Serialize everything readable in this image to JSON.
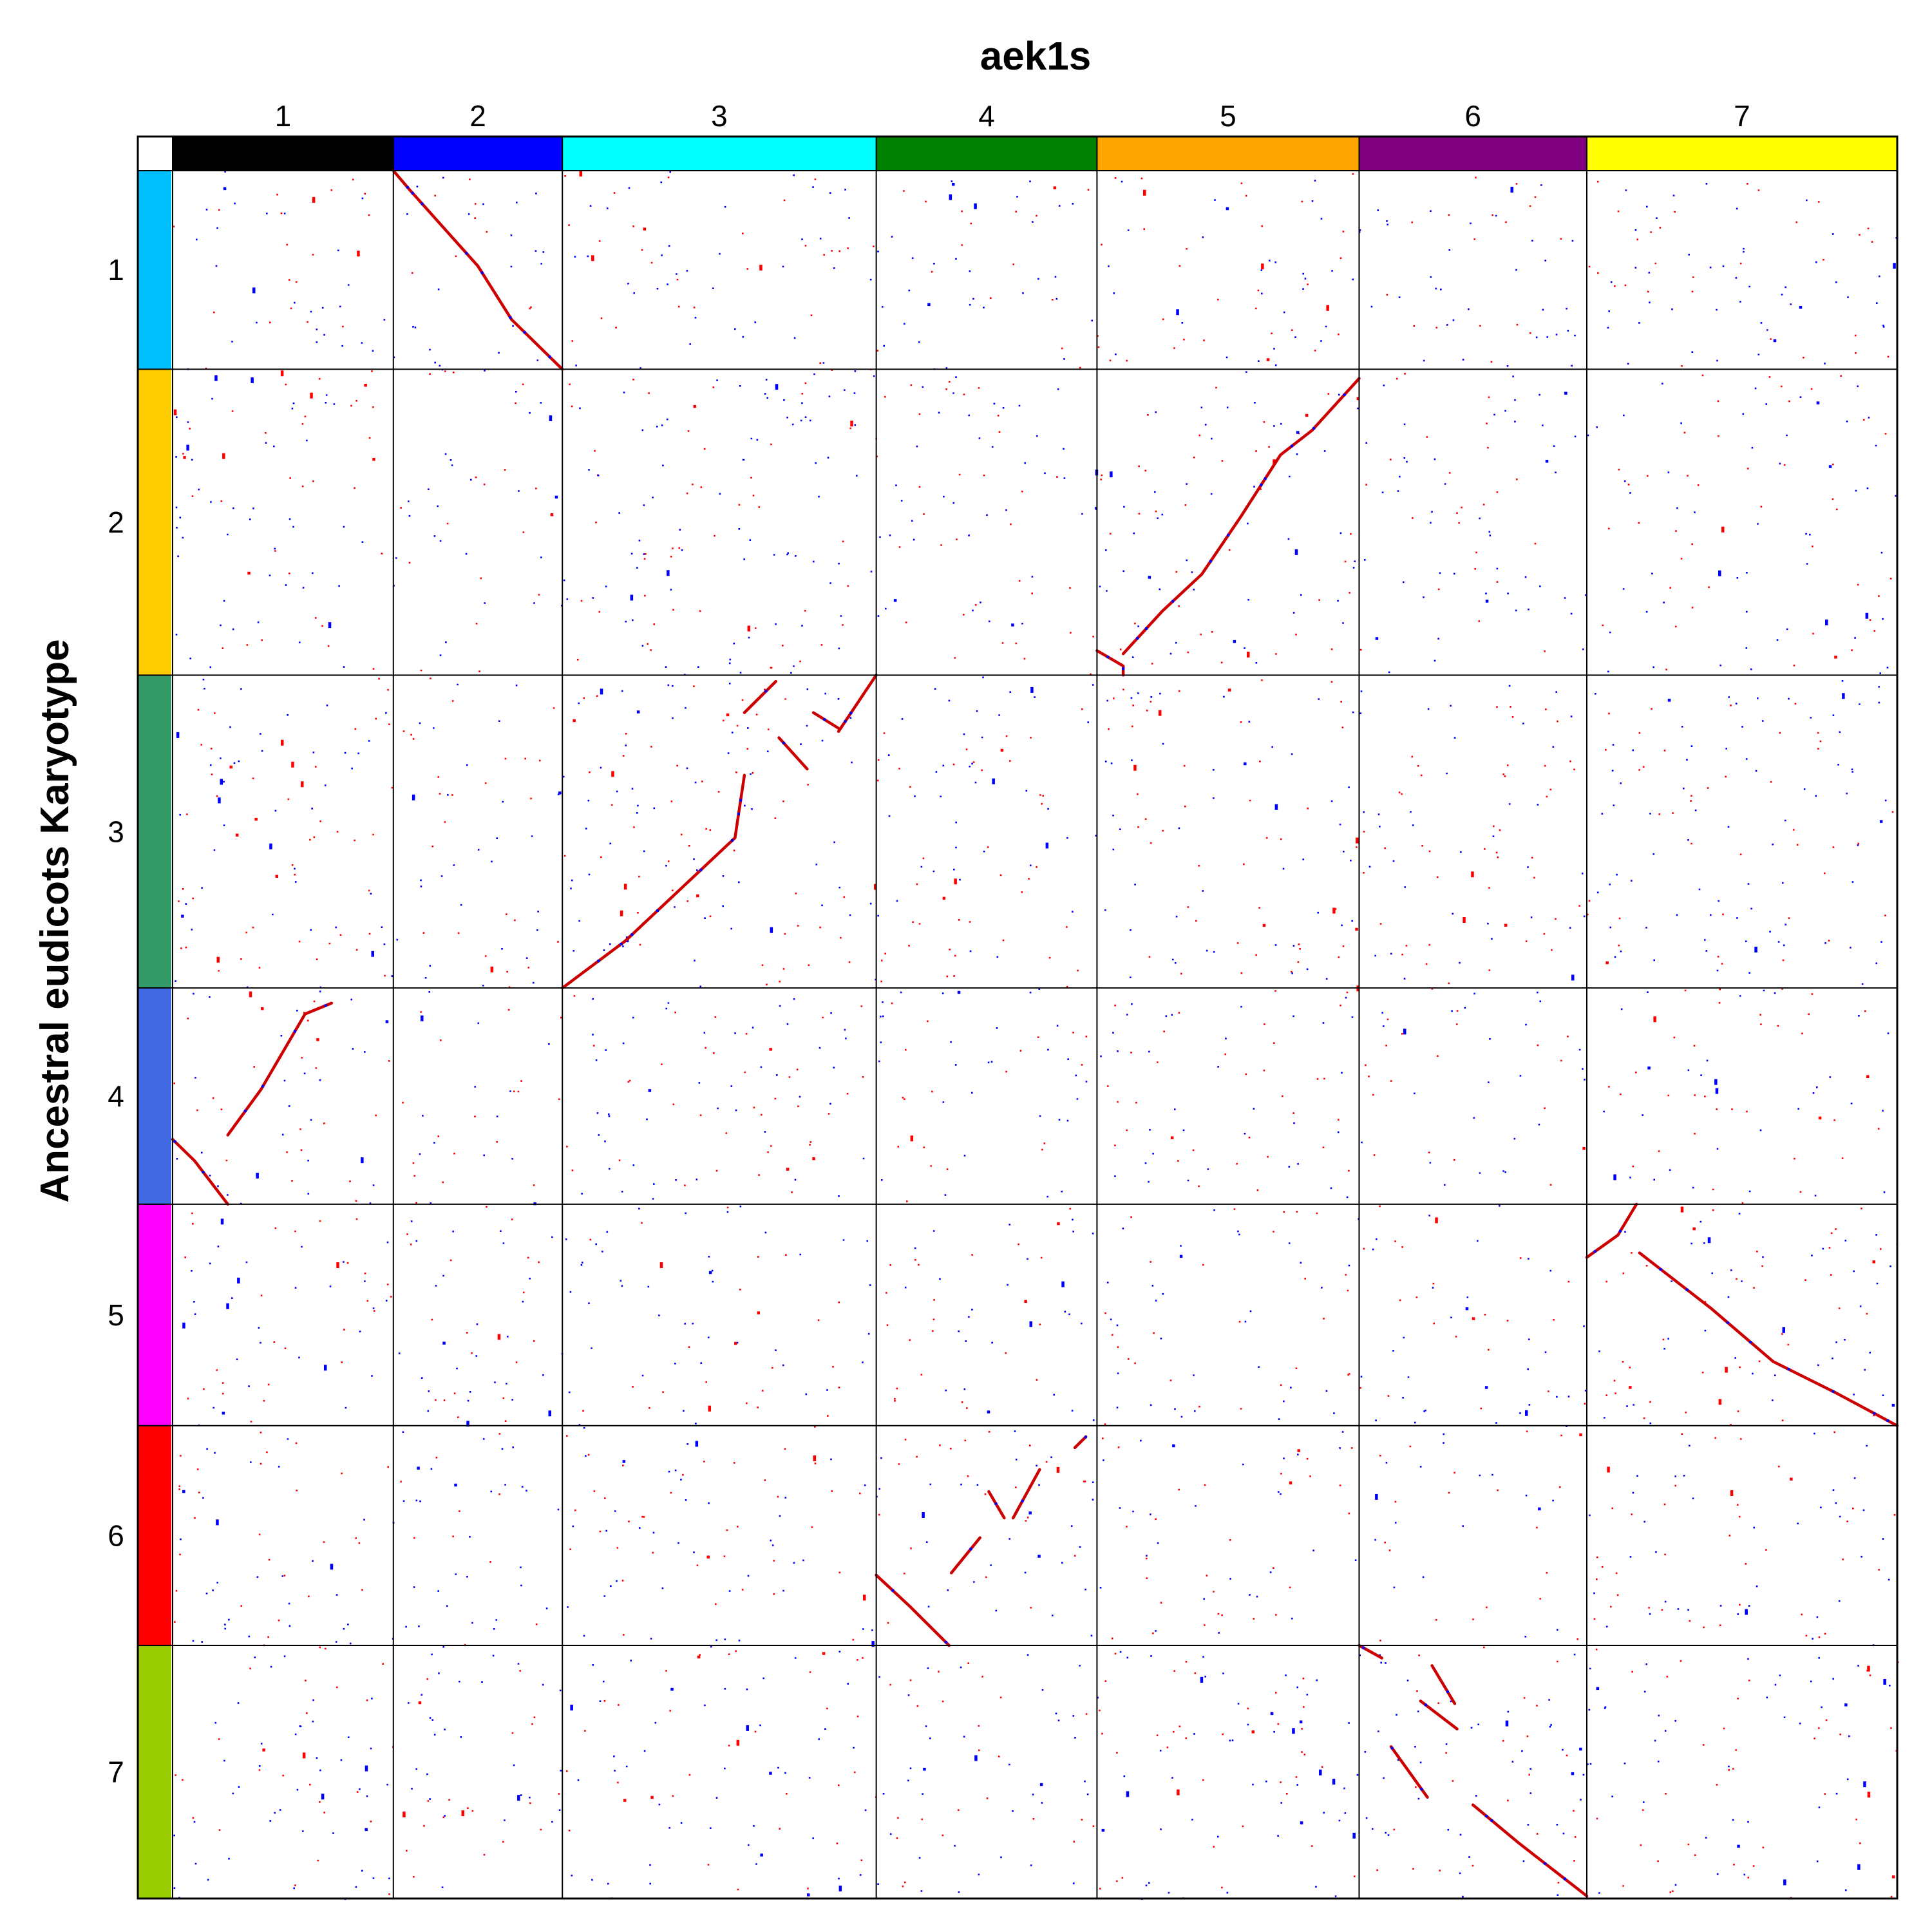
{
  "chart_data": {
    "type": "scatter",
    "title": "aek1s",
    "xlabel": "aek1s",
    "ylabel": "Ancestral eudicots Karyotype",
    "x_chromosomes": [
      {
        "label": "1",
        "color": "#000000",
        "length": 0.128
      },
      {
        "label": "2",
        "color": "#0000ff",
        "length": 0.098
      },
      {
        "label": "3",
        "color": "#00ffff",
        "length": 0.182
      },
      {
        "label": "4",
        "color": "#008000",
        "length": 0.128
      },
      {
        "label": "5",
        "color": "#ffa500",
        "length": 0.152
      },
      {
        "label": "6",
        "color": "#800080",
        "length": 0.132
      },
      {
        "label": "7",
        "color": "#ffff00",
        "length": 0.18
      }
    ],
    "y_chromosomes": [
      {
        "label": "1",
        "color": "#00bfff",
        "length": 0.113
      },
      {
        "label": "2",
        "color": "#ffcc00",
        "length": 0.174
      },
      {
        "label": "3",
        "color": "#339966",
        "length": 0.178
      },
      {
        "label": "4",
        "color": "#4169e1",
        "length": 0.123
      },
      {
        "label": "5",
        "color": "#ff00ff",
        "length": 0.126
      },
      {
        "label": "6",
        "color": "#ff0000",
        "length": 0.125
      },
      {
        "label": "7",
        "color": "#99cc00",
        "length": 0.144
      }
    ],
    "point_colors": {
      "red": "#ff0000",
      "blue": "#0000ff",
      "dark_red": "#cc0000"
    },
    "grid": true,
    "syntenic_blocks": [
      {
        "x_chr": "2",
        "y_chr": "1",
        "points": [
          [
            0.0,
            0.0
          ],
          [
            0.1,
            0.1
          ],
          [
            0.5,
            0.48
          ],
          [
            0.7,
            0.75
          ],
          [
            1.0,
            1.0
          ]
        ]
      },
      {
        "x_chr": "5",
        "y_chr": "2",
        "points": [
          [
            0.0,
            0.92
          ],
          [
            0.1,
            0.97
          ],
          [
            0.1,
            1.0
          ]
        ]
      },
      {
        "x_chr": "5",
        "y_chr": "2",
        "points": [
          [
            0.1,
            0.93
          ],
          [
            0.25,
            0.79
          ],
          [
            0.4,
            0.67
          ],
          [
            0.55,
            0.48
          ],
          [
            0.7,
            0.28
          ],
          [
            0.82,
            0.2
          ],
          [
            1.0,
            0.03
          ]
        ]
      },
      {
        "x_chr": "3",
        "y_chr": "3",
        "points": [
          [
            0.0,
            1.0
          ],
          [
            0.2,
            0.85
          ],
          [
            0.55,
            0.52
          ],
          [
            0.58,
            0.32
          ]
        ]
      },
      {
        "x_chr": "3",
        "y_chr": "3",
        "points": [
          [
            0.58,
            0.12
          ],
          [
            0.68,
            0.02
          ]
        ]
      },
      {
        "x_chr": "3",
        "y_chr": "3",
        "points": [
          [
            0.69,
            0.2
          ],
          [
            0.78,
            0.3
          ]
        ]
      },
      {
        "x_chr": "3",
        "y_chr": "3",
        "points": [
          [
            0.8,
            0.12
          ],
          [
            0.88,
            0.17
          ]
        ]
      },
      {
        "x_chr": "3",
        "y_chr": "3",
        "points": [
          [
            0.88,
            0.18
          ],
          [
            1.0,
            0.0
          ]
        ]
      },
      {
        "x_chr": "1",
        "y_chr": "4",
        "points": [
          [
            0.0,
            0.7
          ],
          [
            0.1,
            0.8
          ],
          [
            0.25,
            1.0
          ]
        ]
      },
      {
        "x_chr": "1",
        "y_chr": "4",
        "points": [
          [
            0.25,
            0.68
          ],
          [
            0.4,
            0.47
          ],
          [
            0.6,
            0.12
          ],
          [
            0.72,
            0.07
          ]
        ]
      },
      {
        "x_chr": "7",
        "y_chr": "5",
        "points": [
          [
            0.0,
            0.24
          ],
          [
            0.1,
            0.14
          ],
          [
            0.16,
            0.0
          ]
        ]
      },
      {
        "x_chr": "7",
        "y_chr": "5",
        "points": [
          [
            0.17,
            0.22
          ],
          [
            0.4,
            0.47
          ],
          [
            0.6,
            0.71
          ],
          [
            0.8,
            0.85
          ],
          [
            1.0,
            1.0
          ]
        ]
      },
      {
        "x_chr": "4",
        "y_chr": "6",
        "points": [
          [
            0.0,
            0.68
          ],
          [
            0.15,
            0.82
          ],
          [
            0.33,
            1.0
          ]
        ]
      },
      {
        "x_chr": "4",
        "y_chr": "6",
        "points": [
          [
            0.34,
            0.67
          ],
          [
            0.47,
            0.51
          ]
        ]
      },
      {
        "x_chr": "4",
        "y_chr": "6",
        "points": [
          [
            0.51,
            0.3
          ],
          [
            0.58,
            0.42
          ]
        ]
      },
      {
        "x_chr": "4",
        "y_chr": "6",
        "points": [
          [
            0.62,
            0.42
          ],
          [
            0.74,
            0.2
          ]
        ]
      },
      {
        "x_chr": "4",
        "y_chr": "6",
        "points": [
          [
            0.9,
            0.1
          ],
          [
            0.95,
            0.05
          ]
        ]
      },
      {
        "x_chr": "6",
        "y_chr": "7",
        "points": [
          [
            0.0,
            0.0
          ],
          [
            0.1,
            0.05
          ]
        ]
      },
      {
        "x_chr": "6",
        "y_chr": "7",
        "points": [
          [
            0.32,
            0.08
          ],
          [
            0.42,
            0.23
          ]
        ]
      },
      {
        "x_chr": "6",
        "y_chr": "7",
        "points": [
          [
            0.27,
            0.22
          ],
          [
            0.43,
            0.33
          ]
        ]
      },
      {
        "x_chr": "6",
        "y_chr": "7",
        "points": [
          [
            0.14,
            0.4
          ],
          [
            0.3,
            0.6
          ]
        ]
      },
      {
        "x_chr": "6",
        "y_chr": "7",
        "points": [
          [
            0.5,
            0.63
          ],
          [
            0.7,
            0.78
          ],
          [
            1.0,
            0.99
          ]
        ]
      }
    ],
    "background_noise_points_per_unit_area": 3400
  }
}
